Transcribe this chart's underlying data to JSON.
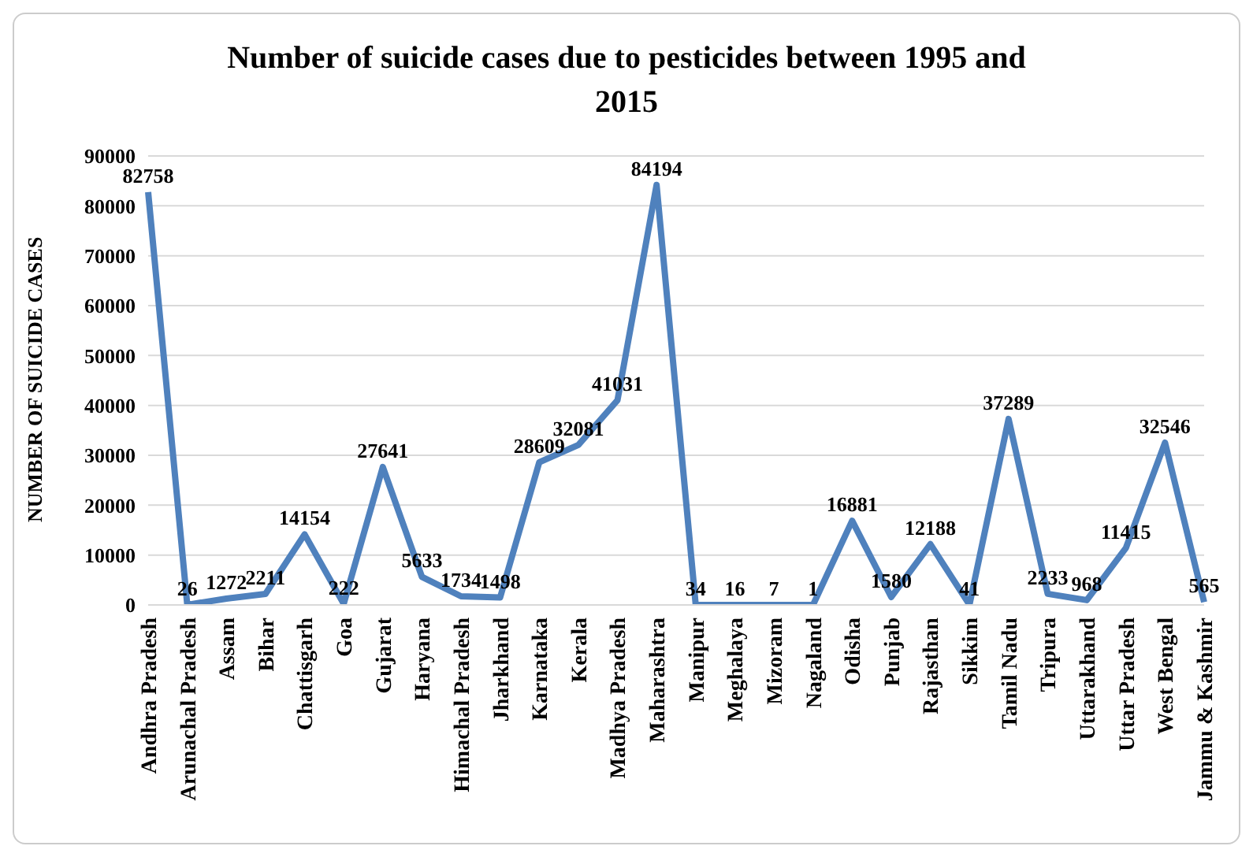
{
  "chart_data": {
    "type": "line",
    "title": "Number of suicide cases due to pesticides between 1995 and 2015",
    "ylabel": "NUMBER OF SUICIDE CASES",
    "categories": [
      "Andhra Pradesh",
      "Arunachal Pradesh",
      "Assam",
      "Bihar",
      "Chattisgarh",
      "Goa",
      "Gujarat",
      "Haryana",
      "Himachal Pradesh",
      "Jharkhand",
      "Karnataka",
      "Kerala",
      "Madhya Pradesh",
      "Maharashtra",
      "Manipur",
      "Meghalaya",
      "Mizoram",
      "Nagaland",
      "Odisha",
      "Punjab",
      "Rajasthan",
      "Sikkim",
      "Tamil Nadu",
      "Tripura",
      "Uttarakhand",
      "Uttar Pradesh",
      "West Bengal",
      "Jammu & Kashmir"
    ],
    "series": [
      {
        "color": "#4f81bd",
        "values": [
          82758,
          26,
          1272,
          2211,
          14154,
          222,
          27641,
          5633,
          1734,
          1498,
          28609,
          32081,
          41031,
          84194,
          34,
          16,
          7,
          1,
          16881,
          1580,
          12188,
          41,
          37289,
          2233,
          968,
          11415,
          32546,
          565
        ]
      }
    ],
    "ylim": [
      0,
      90000
    ],
    "yticks": [
      0,
      10000,
      20000,
      30000,
      40000,
      50000,
      60000,
      70000,
      80000,
      90000
    ],
    "grid": "y",
    "data_labels": true,
    "marker": "none",
    "line_style": "solid"
  }
}
